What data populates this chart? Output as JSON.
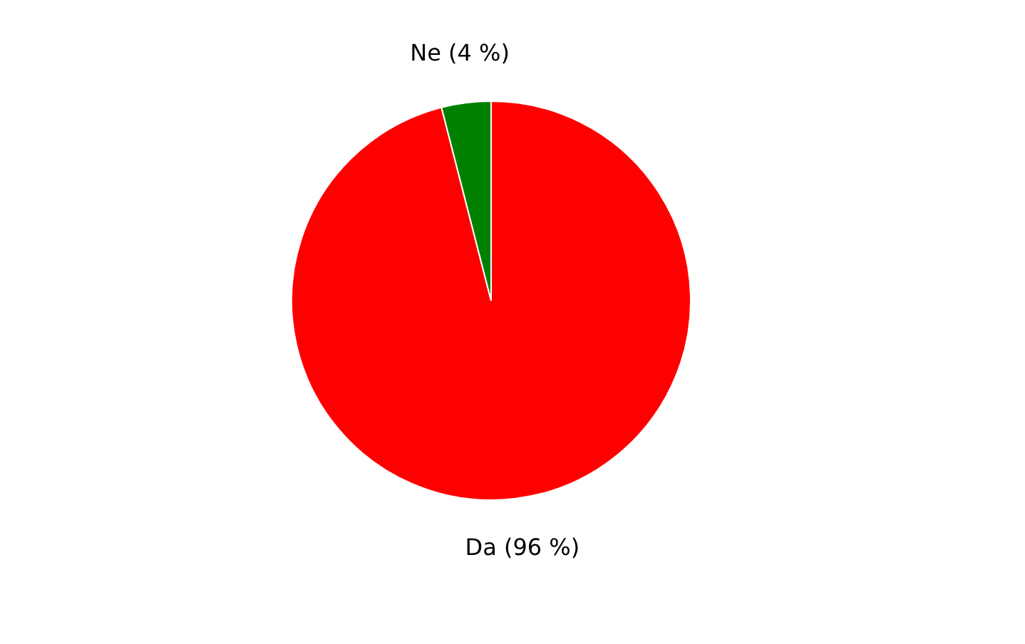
{
  "chart_data": {
    "type": "pie",
    "categories": [
      "Da (96 %)",
      "Ne (4 %)"
    ],
    "values": [
      96,
      4
    ],
    "colors": [
      "#ff0000",
      "#008000"
    ],
    "legend": false
  }
}
